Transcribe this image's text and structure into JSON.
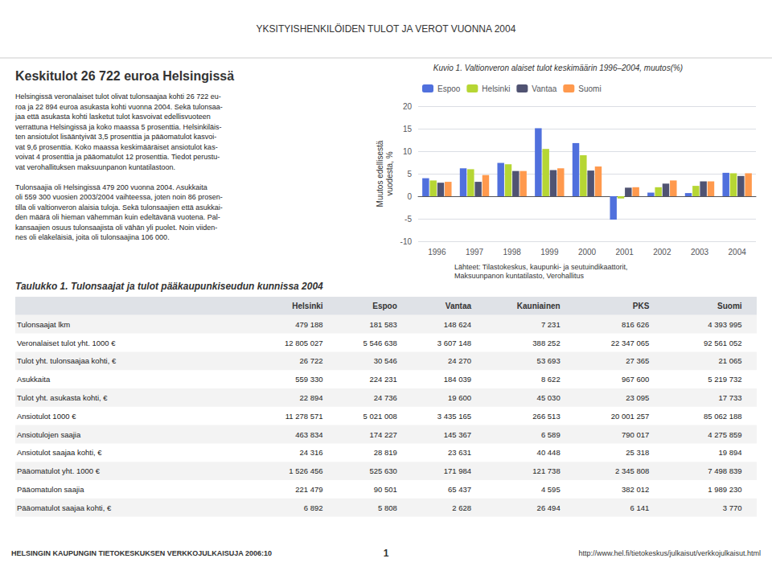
{
  "chart_data": {
    "type": "bar",
    "title": "Kuvio 1. Valtionveron alaiset tulot keskimäärin 1996–2004, muutos(%)",
    "y_label": "Muutos edellisestä\nvuodesta, %",
    "categories": [
      "1996",
      "1997",
      "1998",
      "1999",
      "2000",
      "2001",
      "2002",
      "2003",
      "2004"
    ],
    "series": [
      {
        "name": "Espoo",
        "values": [
          4.0,
          6.2,
          7.4,
          15.1,
          11.8,
          -5.2,
          0.8,
          0.7,
          5.2
        ]
      },
      {
        "name": "Helsinki",
        "values": [
          3.5,
          6.0,
          7.1,
          10.5,
          9.1,
          -0.5,
          2.0,
          2.3,
          5.1
        ]
      },
      {
        "name": "Vantaa",
        "values": [
          3.0,
          3.2,
          5.6,
          5.8,
          5.7,
          1.9,
          2.8,
          3.3,
          4.5
        ]
      },
      {
        "name": "Suomi",
        "values": [
          3.2,
          4.7,
          5.6,
          6.2,
          6.6,
          2.0,
          3.5,
          3.3,
          5.1
        ]
      }
    ],
    "ylim": [
      -10,
      20
    ],
    "yticks": [
      -10,
      -5,
      0,
      5,
      10,
      15,
      20
    ],
    "grid": true,
    "legend": "upper left"
  },
  "page_title": "YKSITYISHENKILÖIDEN TULOT JA VEROT VUONNA 2004",
  "header_left": "Keskitulot 26 722 euroa Helsingissä",
  "body_text": "Helsingissä veronalaiset tulot olivat tulonsaajaa kohti 26 722 eu-\nroa ja 22 894 euroa asukasta kohti vuonna 2004. Sekä tulonsaa-\njaa että asukasta kohti lasketut tulot kasvoivat edellisvuoteen\nverrattuna Helsingissä ja koko maassa 5 prosenttia. Helsinkiläis-\nten ansiotulot lisääntyivät 3,5 prosenttia ja pääomatulot kasvoi-\nvat 9,6 prosenttia. Koko maassa keskimääräiset ansiotulot kas-\nvoivat 4 prosenttia ja pääomatulot 12 prosenttia. Tiedot perustu-\nvat verohallituksen maksuunpanon kuntatilastoon.\n\nTulonsaajia oli Helsingissä 479 200 vuonna 2004. Asukkaita\noli 559 300 vuosien 2003/2004 vaihteessa, joten noin 86 prosen-\ntilla oli valtionveron alaisia tuloja. Sekä tulonsaajien että asukkai-\nden määrä oli hieman vähemmän kuin edeltävänä vuotena. Pal-\nkansaajien osuus tulonsaajista oli vähän yli puolet. Noin viiden-\nnes oli eläkeläisiä, joita oli tulonsaajina 106 000.",
  "source": "Lähteet: Tilastokeskus, kaupunki- ja seutuindikaattorit,\nMaksuunpanon kuntatilasto, Verohallitus",
  "table": {
    "title": "Taulukko 1. Tulonsaajat ja tulot pääkaupunkiseudun kunnissa 2004",
    "headers": [
      "Helsinki",
      "Espoo",
      "Vantaa",
      "Kauniainen",
      "PKS",
      "Suomi"
    ],
    "rows": [
      {
        "label": "Tulonsaajat lkm",
        "values": [
          "479 188",
          "181 583",
          "148 624",
          "7 231",
          "816 626",
          "4 393 995"
        ]
      },
      {
        "label": "Veronalaiset tulot yht. 1000 €",
        "values": [
          "12 805 027",
          "5 546 638",
          "3 607 148",
          "388 252",
          "22 347 065",
          "92 561 052"
        ]
      },
      {
        "label": "Tulot yht. tulonsaajaa kohti, €",
        "values": [
          "26 722",
          "30 546",
          "24 270",
          "53 693",
          "27 365",
          "21 065"
        ]
      },
      {
        "label": "Asukkaita",
        "values": [
          "559 330",
          "224 231",
          "184 039",
          "8 622",
          "967 600",
          "5 219 732"
        ]
      },
      {
        "label": "Tulot yht. asukasta kohti, €",
        "values": [
          "22 894",
          "24 736",
          "19 600",
          "45 030",
          "23 095",
          "17 733"
        ]
      },
      {
        "label": "Ansiotulot 1000 €",
        "values": [
          "11 278 571",
          "5 021 008",
          "3 435 165",
          "266 513",
          "20 001 257",
          "85 062 188"
        ]
      },
      {
        "label": "Ansiotulojen saajia",
        "values": [
          "463 834",
          "174 227",
          "145 367",
          "6 589",
          "790 017",
          "4 275 859"
        ]
      },
      {
        "label": "Ansiotulot saajaa kohti, €",
        "values": [
          "24 316",
          "28 819",
          "23 631",
          "40 448",
          "25 318",
          "19 894"
        ]
      },
      {
        "label": "Pääomatulot yht. 1000 €",
        "values": [
          "1 526 456",
          "525 630",
          "171 984",
          "121 738",
          "2 345 808",
          "7 498 839"
        ]
      },
      {
        "label": "Pääomatulon saajia",
        "values": [
          "221 479",
          "90 501",
          "65 437",
          "4 595",
          "382 012",
          "1 989 230"
        ]
      },
      {
        "label": "Pääomatulot saajaa kohti, €",
        "values": [
          "6 892",
          "5 808",
          "2 628",
          "26 494",
          "6 141",
          "3 770"
        ]
      }
    ]
  },
  "footer_left": "HELSINGIN KAUPUNGIN TIETOKESKUKSEN VERKKOJULKAISUJA 2006:10",
  "footer_right": "http://www.hel.fi/tietokeskus/julkaisut/verkkojulkaisut.html",
  "page_num": "1"
}
